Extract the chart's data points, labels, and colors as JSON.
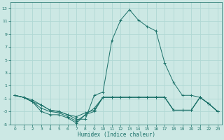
{
  "xlabel": "Humidex (Indice chaleur)",
  "background_color": "#cce8e4",
  "grid_color": "#b0d8d4",
  "line_color": "#1a7068",
  "xlim": [
    -0.5,
    23.5
  ],
  "ylim": [
    -5,
    14
  ],
  "xticks": [
    0,
    1,
    2,
    3,
    4,
    5,
    6,
    7,
    8,
    9,
    10,
    11,
    12,
    13,
    14,
    15,
    16,
    17,
    18,
    19,
    20,
    21,
    22,
    23
  ],
  "yticks": [
    -5,
    -3,
    -1,
    1,
    3,
    5,
    7,
    9,
    11,
    13
  ],
  "series": [
    {
      "x": [
        0,
        1,
        2,
        3,
        4,
        5,
        6,
        7,
        8,
        9,
        10,
        11,
        12,
        13,
        14,
        15,
        16,
        17,
        18,
        19,
        20,
        21,
        22,
        23
      ],
      "y": [
        -0.5,
        -0.8,
        -1.2,
        -2.0,
        -2.8,
        -3.0,
        -3.5,
        -4.2,
        -4.2,
        -0.5,
        0.0,
        8.0,
        11.2,
        12.8,
        11.2,
        10.2,
        9.5,
        4.5,
        1.5,
        -0.5,
        -0.5,
        -0.8,
        -1.8,
        -3.0
      ]
    },
    {
      "x": [
        0,
        1,
        2,
        3,
        4,
        5,
        6,
        7,
        8,
        9,
        10,
        11,
        12,
        13,
        14,
        15,
        16,
        17,
        18,
        19,
        20,
        21,
        22,
        23
      ],
      "y": [
        -0.5,
        -0.8,
        -1.5,
        -2.0,
        -2.8,
        -3.0,
        -3.5,
        -3.8,
        -3.2,
        -2.8,
        -0.8,
        -0.8,
        -0.8,
        -0.8,
        -0.8,
        -0.8,
        -0.8,
        -0.8,
        -2.8,
        -2.8,
        -2.8,
        -0.8,
        -1.8,
        -3.0
      ]
    },
    {
      "x": [
        0,
        1,
        2,
        3,
        4,
        5,
        6,
        7,
        8,
        9,
        10,
        11,
        12,
        13,
        14,
        15,
        16,
        17,
        18,
        19,
        20,
        21,
        22,
        23
      ],
      "y": [
        -0.5,
        -0.8,
        -1.5,
        -2.5,
        -3.0,
        -3.2,
        -3.8,
        -4.5,
        -3.5,
        -2.5,
        -0.8,
        -0.8,
        -0.8,
        -0.8,
        -0.8,
        -0.8,
        -0.8,
        -0.8,
        -2.8,
        -2.8,
        -2.8,
        -0.8,
        -1.8,
        -3.0
      ]
    },
    {
      "x": [
        0,
        1,
        2,
        3,
        4,
        5,
        6,
        7,
        8,
        9,
        10,
        11,
        12,
        13,
        14,
        15,
        16,
        17,
        18,
        19,
        20,
        21,
        22,
        23
      ],
      "y": [
        -0.5,
        -0.8,
        -1.5,
        -3.0,
        -3.5,
        -3.5,
        -4.0,
        -4.8,
        -3.5,
        -3.0,
        -0.8,
        -0.8,
        -0.8,
        -0.8,
        -0.8,
        -0.8,
        -0.8,
        -0.8,
        -2.8,
        -2.8,
        -2.8,
        -0.8,
        -1.8,
        -3.0
      ]
    }
  ]
}
